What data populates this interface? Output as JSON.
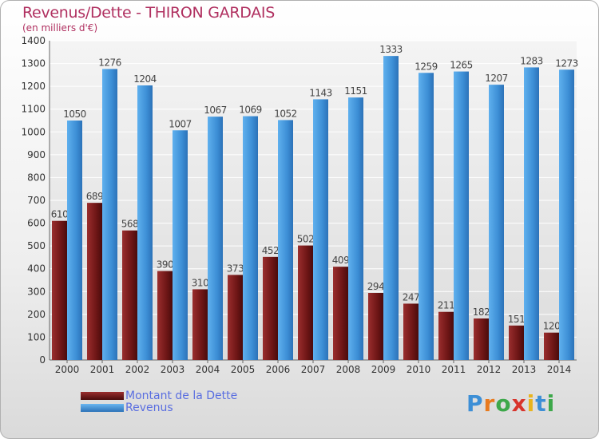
{
  "header": {
    "title": "Revenus/Dette - THIRON GARDAIS",
    "subtitle": "(en milliers d'€)"
  },
  "legend": {
    "items": [
      {
        "label": "Montant de la Dette",
        "color": "#7a1a1a"
      },
      {
        "label": "Revenus",
        "color": "#3d8fd6"
      }
    ]
  },
  "logo": {
    "text": "Proxiti"
  },
  "chart_data": {
    "type": "bar",
    "title": "Revenus/Dette - THIRON GARDAIS",
    "subtitle": "(en milliers d'€)",
    "categories": [
      "2000",
      "2001",
      "2002",
      "2003",
      "2004",
      "2005",
      "2006",
      "2007",
      "2008",
      "2009",
      "2010",
      "2011",
      "2012",
      "2013",
      "2014"
    ],
    "series": [
      {
        "name": "Montant de la Dette",
        "color": "#7a1a1a",
        "values": [
          610,
          689,
          568,
          390,
          310,
          373,
          452,
          502,
          409,
          294,
          247,
          211,
          182,
          151,
          120
        ]
      },
      {
        "name": "Revenus",
        "color": "#3d8fd6",
        "values": [
          1050,
          1276,
          1204,
          1007,
          1067,
          1069,
          1052,
          1143,
          1151,
          1333,
          1259,
          1265,
          1207,
          1283,
          1273
        ]
      }
    ],
    "ylim": [
      0,
      1400
    ],
    "yticks": [
      0,
      100,
      200,
      300,
      400,
      500,
      600,
      700,
      800,
      900,
      1000,
      1100,
      1200,
      1300,
      1400
    ],
    "grid": true,
    "legend_position": "bottom-left"
  }
}
